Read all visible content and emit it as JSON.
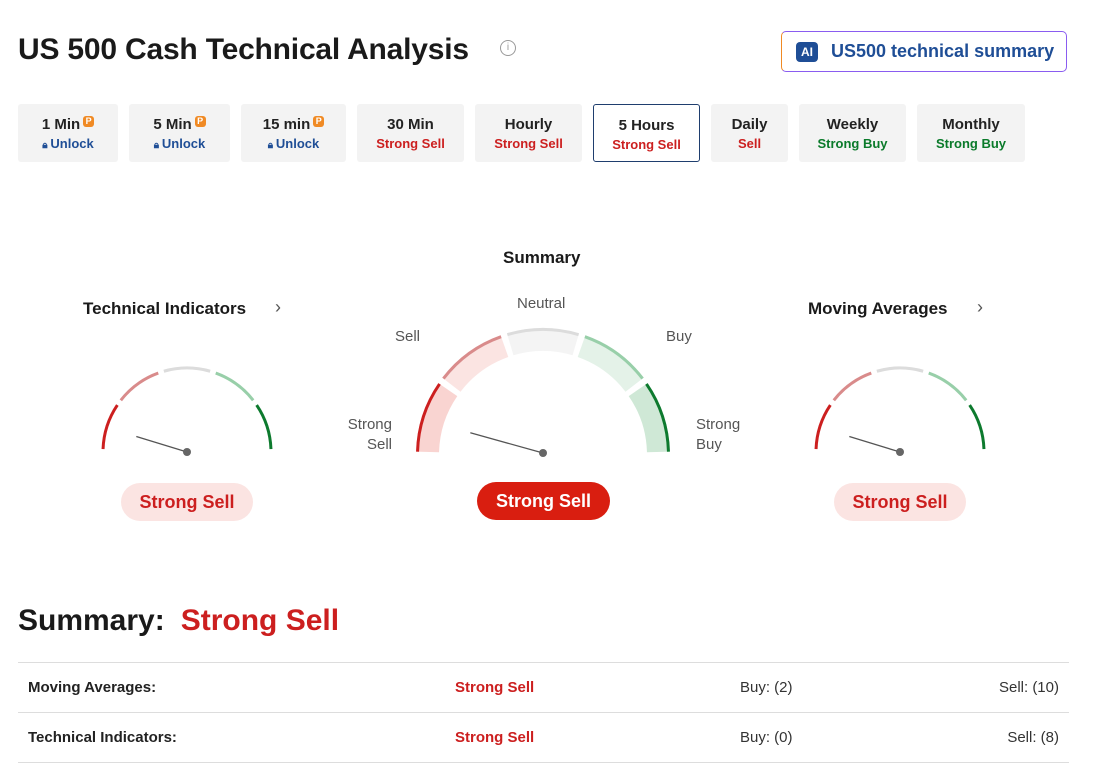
{
  "header": {
    "title": "US 500 Cash Technical Analysis",
    "ai_badge": "AI",
    "ai_button": "US500 technical summary"
  },
  "tabs": [
    {
      "label": "1 Min",
      "status": "Unlock",
      "locked": true
    },
    {
      "label": "5 Min",
      "status": "Unlock",
      "locked": true
    },
    {
      "label": "15 min",
      "status": "Unlock",
      "locked": true
    },
    {
      "label": "30 Min",
      "status": "Strong Sell",
      "tone": "sell"
    },
    {
      "label": "Hourly",
      "status": "Strong Sell",
      "tone": "sell"
    },
    {
      "label": "5 Hours",
      "status": "Strong Sell",
      "tone": "sell",
      "active": true
    },
    {
      "label": "Daily",
      "status": "Sell",
      "tone": "sell"
    },
    {
      "label": "Weekly",
      "status": "Strong Buy",
      "tone": "buy"
    },
    {
      "label": "Monthly",
      "status": "Strong Buy",
      "tone": "buy"
    }
  ],
  "gauges": {
    "technical_indicators": {
      "title": "Technical Indicators",
      "result": "Strong Sell"
    },
    "summary": {
      "title": "Summary",
      "result": "Strong Sell",
      "labels": {
        "strong_sell": "Strong Sell",
        "sell": "Sell",
        "neutral": "Neutral",
        "buy": "Buy",
        "strong_buy": "Strong Buy"
      }
    },
    "moving_averages": {
      "title": "Moving Averages",
      "result": "Strong Sell"
    }
  },
  "summary": {
    "label": "Summary:",
    "value": "Strong Sell"
  },
  "table": {
    "rows": [
      [
        "Moving Averages:",
        "Strong Sell",
        "Buy: (2)",
        "Sell: (10)"
      ],
      [
        "Technical Indicators:",
        "Strong Sell",
        "Buy: (0)",
        "Sell: (8)"
      ]
    ]
  }
}
